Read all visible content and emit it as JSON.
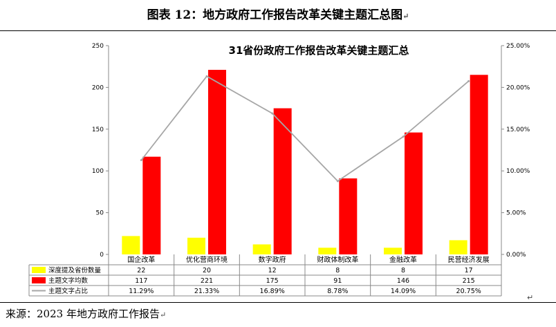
{
  "figure": {
    "caption": "图表 12：地方政府工作报告改革关键主题汇总图",
    "source": "来源：2023 年地方政府工作报告",
    "para_mark": "↵"
  },
  "chart_data": {
    "type": "bar",
    "title": "31省份政府工作报告改革关键主题汇总",
    "categories": [
      "国企改革",
      "优化营商环境",
      "数字政府",
      "财政体制改革",
      "金融改革",
      "民营经济发展"
    ],
    "series": [
      {
        "name": "深度提及省份数量",
        "type": "bar",
        "axis": "left",
        "color": "#FFFF00",
        "values": [
          22,
          20,
          12,
          8,
          8,
          17
        ],
        "labels": [
          "22",
          "20",
          "12",
          "8",
          "8",
          "17"
        ]
      },
      {
        "name": "主题文字均数",
        "type": "bar",
        "axis": "left",
        "color": "#FF0000",
        "values": [
          117,
          221,
          175,
          91,
          146,
          215
        ],
        "labels": [
          "117",
          "221",
          "175",
          "91",
          "146",
          "215"
        ]
      },
      {
        "name": "主题文字占比",
        "type": "line",
        "axis": "right",
        "color": "#A6A6A6",
        "values": [
          11.29,
          21.33,
          16.89,
          8.78,
          14.09,
          20.75
        ],
        "labels": [
          "11.29%",
          "21.33%",
          "16.89%",
          "8.78%",
          "14.09%",
          "20.75%"
        ]
      }
    ],
    "y_left": {
      "ylim": [
        0,
        250
      ],
      "ticks": [
        0,
        50,
        100,
        150,
        200,
        250
      ],
      "tick_labels": [
        "0",
        "50",
        "100",
        "150",
        "200",
        "250"
      ]
    },
    "y_right": {
      "ylim": [
        0,
        25
      ],
      "ticks": [
        0,
        5,
        10,
        15,
        20,
        25
      ],
      "tick_labels": [
        "0.00%",
        "5.00%",
        "10.00%",
        "15.00%",
        "20.00%",
        "25.00%"
      ]
    },
    "grid": false,
    "legend": "data-table-bottom"
  }
}
